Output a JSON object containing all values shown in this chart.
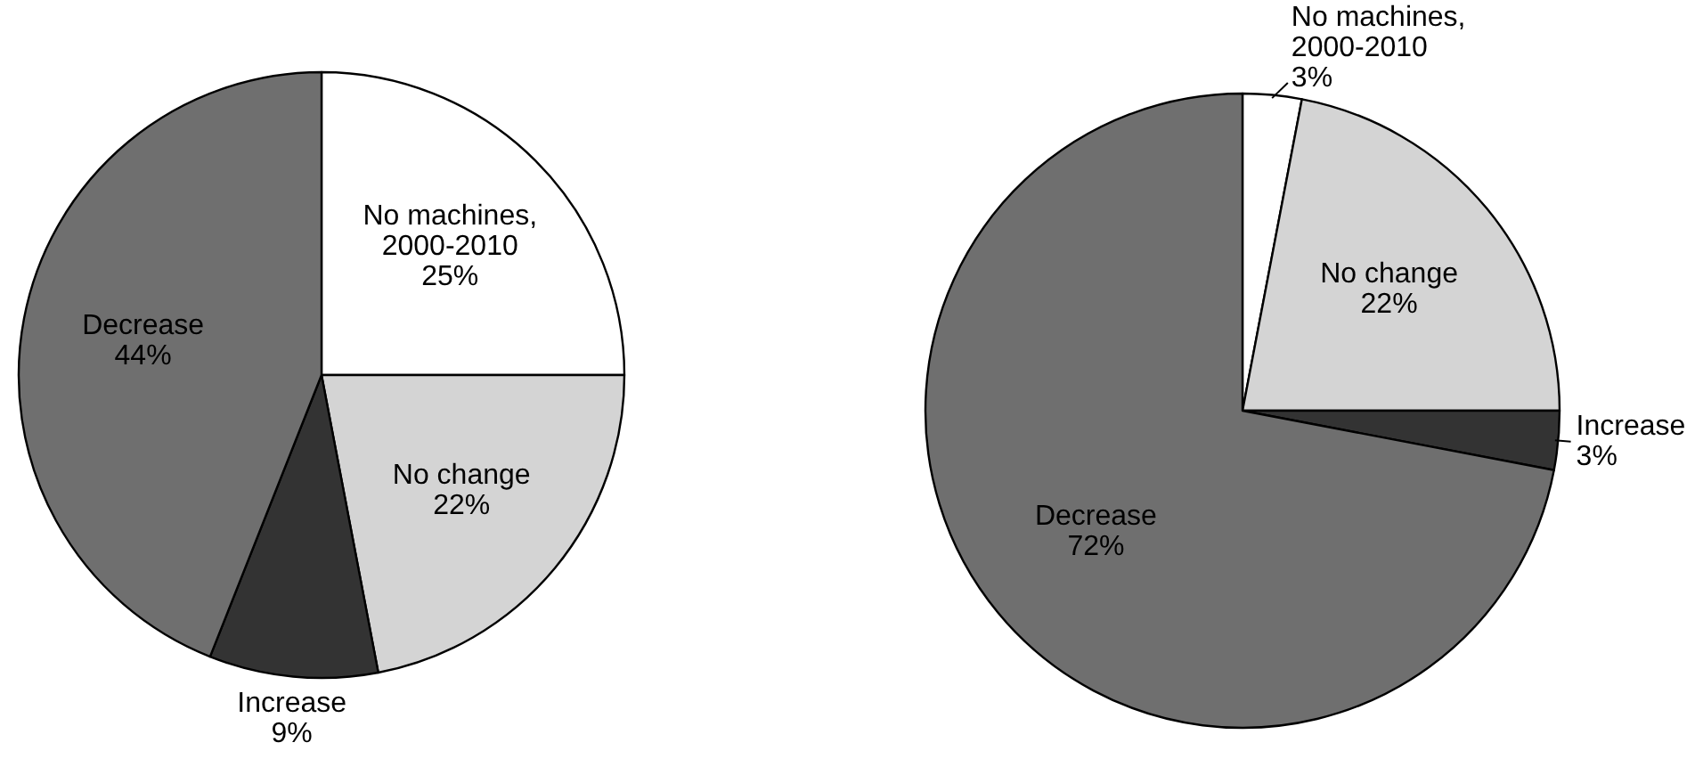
{
  "chart_data": [
    {
      "type": "pie",
      "categories": [
        "No machines, 2000-2010",
        "No change",
        "Increase",
        "Decrease"
      ],
      "values": [
        25,
        22,
        9,
        44
      ],
      "value_labels": [
        "25%",
        "22%",
        "9%",
        "44%"
      ],
      "colors": [
        "#ffffff",
        "#d4d4d4",
        "#333333",
        "#6f6f6f"
      ]
    },
    {
      "type": "pie",
      "categories": [
        "No machines, 2000-2010",
        "No change",
        "Increase",
        "Decrease"
      ],
      "values": [
        3,
        22,
        3,
        72
      ],
      "value_labels": [
        "3%",
        "22%",
        "3%",
        "72%"
      ],
      "colors": [
        "#ffffff",
        "#d4d4d4",
        "#333333",
        "#6f6f6f"
      ]
    }
  ]
}
